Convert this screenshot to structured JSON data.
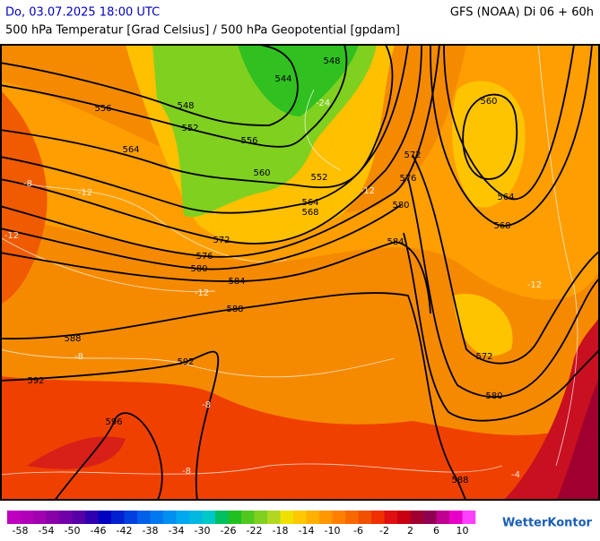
{
  "header": {
    "datetime": "Do, 03.07.2025 18:00 UTC",
    "model": "GFS (NOAA) Di 06 + 60h",
    "subtitle": "500 hPa Temperatur [Grad Celsius] / 500 hPa Geopotential [gpdam]"
  },
  "map": {
    "geopotential_labels": [
      556,
      564,
      548,
      552,
      556,
      544,
      548,
      560,
      552,
      564,
      568,
      572,
      576,
      580,
      584,
      588,
      588,
      592,
      592,
      596,
      560,
      572,
      576,
      580,
      584,
      564,
      568,
      572,
      580,
      588
    ],
    "isotherm_labels": [
      -12,
      -8,
      -12,
      -24,
      -12,
      -12,
      -8,
      -8,
      -8,
      -12,
      -4
    ]
  },
  "legend": {
    "colors": [
      "#c000c0",
      "#b000b8",
      "#a000b0",
      "#8800a8",
      "#7000a8",
      "#5800a8",
      "#3000b0",
      "#0000c0",
      "#0020d0",
      "#0040e0",
      "#0060e8",
      "#0078f0",
      "#0090f0",
      "#00a8f0",
      "#00b8e0",
      "#00c8c8",
      "#00c060",
      "#20c020",
      "#50c820",
      "#80d020",
      "#b0d820",
      "#f0e000",
      "#ffc800",
      "#ffb000",
      "#ff9800",
      "#ff8000",
      "#f86800",
      "#f05000",
      "#f03000",
      "#e01010",
      "#c80010",
      "#a00030",
      "#900050",
      "#c00090",
      "#e800c8",
      "#ff40ff"
    ],
    "labels": [
      -58,
      -54,
      -50,
      -46,
      -42,
      -38,
      -34,
      -30,
      -26,
      -22,
      -18,
      -14,
      -10,
      -6,
      -2,
      2,
      6,
      10
    ]
  },
  "brand": "WetterKontor"
}
